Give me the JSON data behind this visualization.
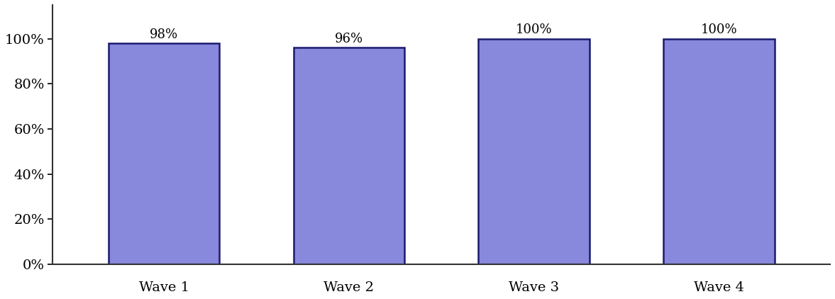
{
  "categories": [
    "Wave 1",
    "Wave 2",
    "Wave 3",
    "Wave 4"
  ],
  "values": [
    0.98,
    0.96,
    1.0,
    1.0
  ],
  "labels": [
    "98%",
    "96%",
    "100%",
    "100%"
  ],
  "bar_color": "#8888dd",
  "bar_edgecolor": "#1a1a6e",
  "bar_width": 0.6,
  "xlim": [
    -0.6,
    3.6
  ],
  "ylim": [
    0,
    1.15
  ],
  "yticks": [
    0.0,
    0.2,
    0.4,
    0.6,
    0.8,
    1.0
  ],
  "ytick_labels": [
    "0%",
    "20%",
    "40%",
    "60%",
    "80%",
    "100%"
  ],
  "label_fontsize": 14,
  "tick_fontsize": 14,
  "annotation_fontsize": 13,
  "background_color": "#ffffff",
  "spine_color": "#333333"
}
